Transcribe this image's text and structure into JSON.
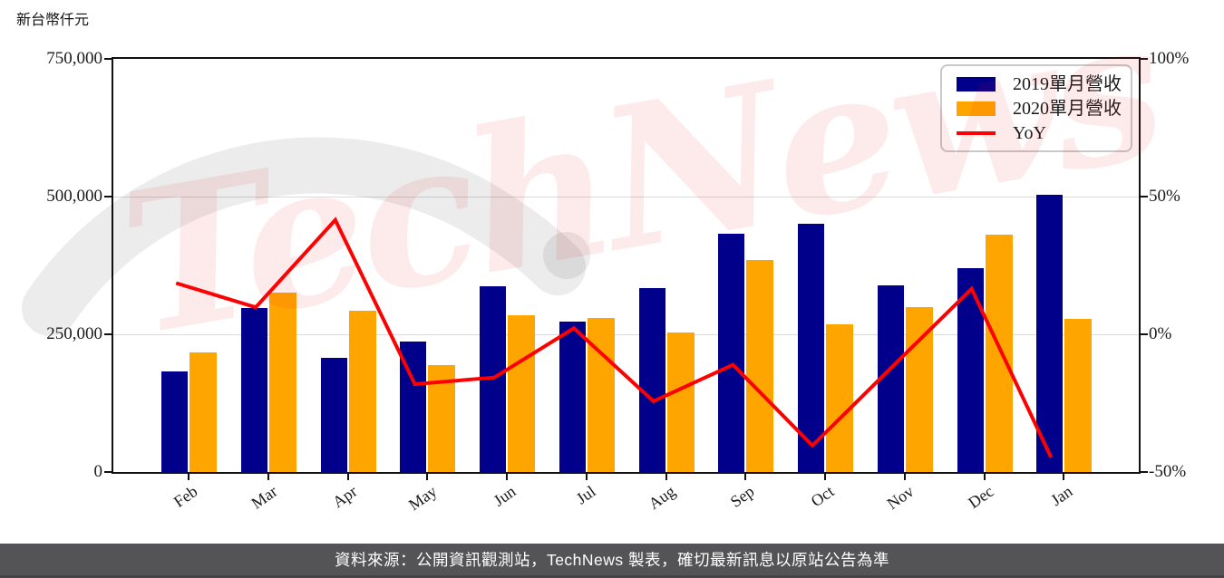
{
  "unit_label": "新台幣仟元",
  "watermark": {
    "text": "TechNews"
  },
  "footer": {
    "text": "資料來源：公開資訊觀測站，TechNews 製表，確切最新訊息以原站公告為準"
  },
  "chart_data": {
    "type": "bar",
    "subtype": "grouped bars with overlaid line (dual axis)",
    "categories": [
      "Feb",
      "Mar",
      "Apr",
      "May",
      "Jun",
      "Jul",
      "Aug",
      "Sep",
      "Oct",
      "Nov",
      "Dec",
      "Jan"
    ],
    "series": [
      {
        "name": "2019單月營收",
        "type": "bar",
        "axis": "left",
        "color": "#00008B",
        "values": [
          183000,
          297000,
          207000,
          237000,
          338000,
          273000,
          334000,
          433000,
          450000,
          339000,
          370000,
          503000
        ]
      },
      {
        "name": "2020單月營收",
        "type": "bar",
        "axis": "left",
        "color": "#FFA500",
        "values": [
          217000,
          326000,
          293000,
          194000,
          285000,
          279000,
          253000,
          385000,
          268000,
          299000,
          431000,
          278000
        ]
      },
      {
        "name": "YoY",
        "type": "line",
        "axis": "right",
        "color": "#FF0000",
        "values": [
          18.6,
          9.8,
          41.5,
          -18.1,
          -15.7,
          2.2,
          -24.3,
          -11.1,
          -40.4,
          -11.8,
          16.5,
          -44.7
        ]
      }
    ],
    "left_axis": {
      "ticks": [
        "0",
        "250,000",
        "500,000",
        "750,000"
      ],
      "range": [
        0,
        750000
      ],
      "grid_values": [
        250000,
        500000
      ]
    },
    "right_axis": {
      "ticks": [
        "-50%",
        "0%",
        "50%",
        "100%"
      ],
      "range": [
        -50,
        100
      ]
    },
    "legend_position": "top-right",
    "grid": "horizontal",
    "colors": {
      "footer_bg": "#545456",
      "grid_line": "#D9D9D9",
      "axis": "#111111",
      "watermark_pink": "#ED1C24",
      "watermark_gray": "#EBEBEB"
    }
  }
}
